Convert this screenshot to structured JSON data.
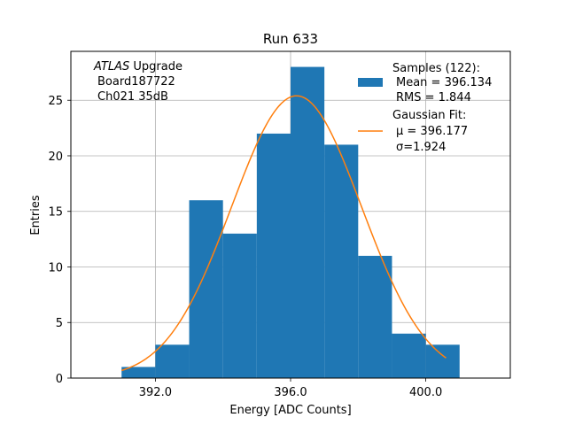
{
  "chart_data": {
    "type": "bar",
    "title": "Run 633",
    "xlabel": "Energy [ADC Counts]",
    "ylabel": "Entries",
    "xlim": [
      389.5,
      402.5
    ],
    "ylim": [
      0,
      29.4
    ],
    "grid": true,
    "x_ticks": [
      392.0,
      396.0,
      400.0
    ],
    "x_tick_labels": [
      "392.0",
      "396.0",
      "400.0"
    ],
    "y_ticks": [
      0,
      5,
      10,
      15,
      20,
      25
    ],
    "y_tick_labels": [
      "0",
      "5",
      "10",
      "15",
      "20",
      "25"
    ],
    "bar_color": "#1f77b4",
    "fit_color": "#ff7f0e",
    "histogram": {
      "name": "Samples (122)",
      "bin_edges": [
        391,
        392,
        393,
        394,
        395,
        396,
        397,
        398,
        399,
        400,
        401
      ],
      "counts": [
        1,
        3,
        16,
        13,
        22,
        28,
        21,
        11,
        4,
        3
      ]
    },
    "fit": {
      "name": "Gaussian Fit",
      "mu": 396.177,
      "sigma": 1.924,
      "amplitude": 25.4,
      "x_range": [
        391.0,
        400.6
      ]
    },
    "annotation_lines": [
      "ATLAS Upgrade",
      "Board187722",
      "Ch021 35dB"
    ],
    "annotation_italic": "ATLAS",
    "annotation_rest": " Upgrade",
    "legend_location": "top-right",
    "legend": {
      "samples_title": "Samples (122):",
      "samples_mean": "Mean = 396.134",
      "samples_rms": "RMS = 1.844",
      "fit_title": "Gaussian Fit:",
      "fit_mu": "μ = 396.177",
      "fit_sigma": "σ=1.924"
    }
  }
}
